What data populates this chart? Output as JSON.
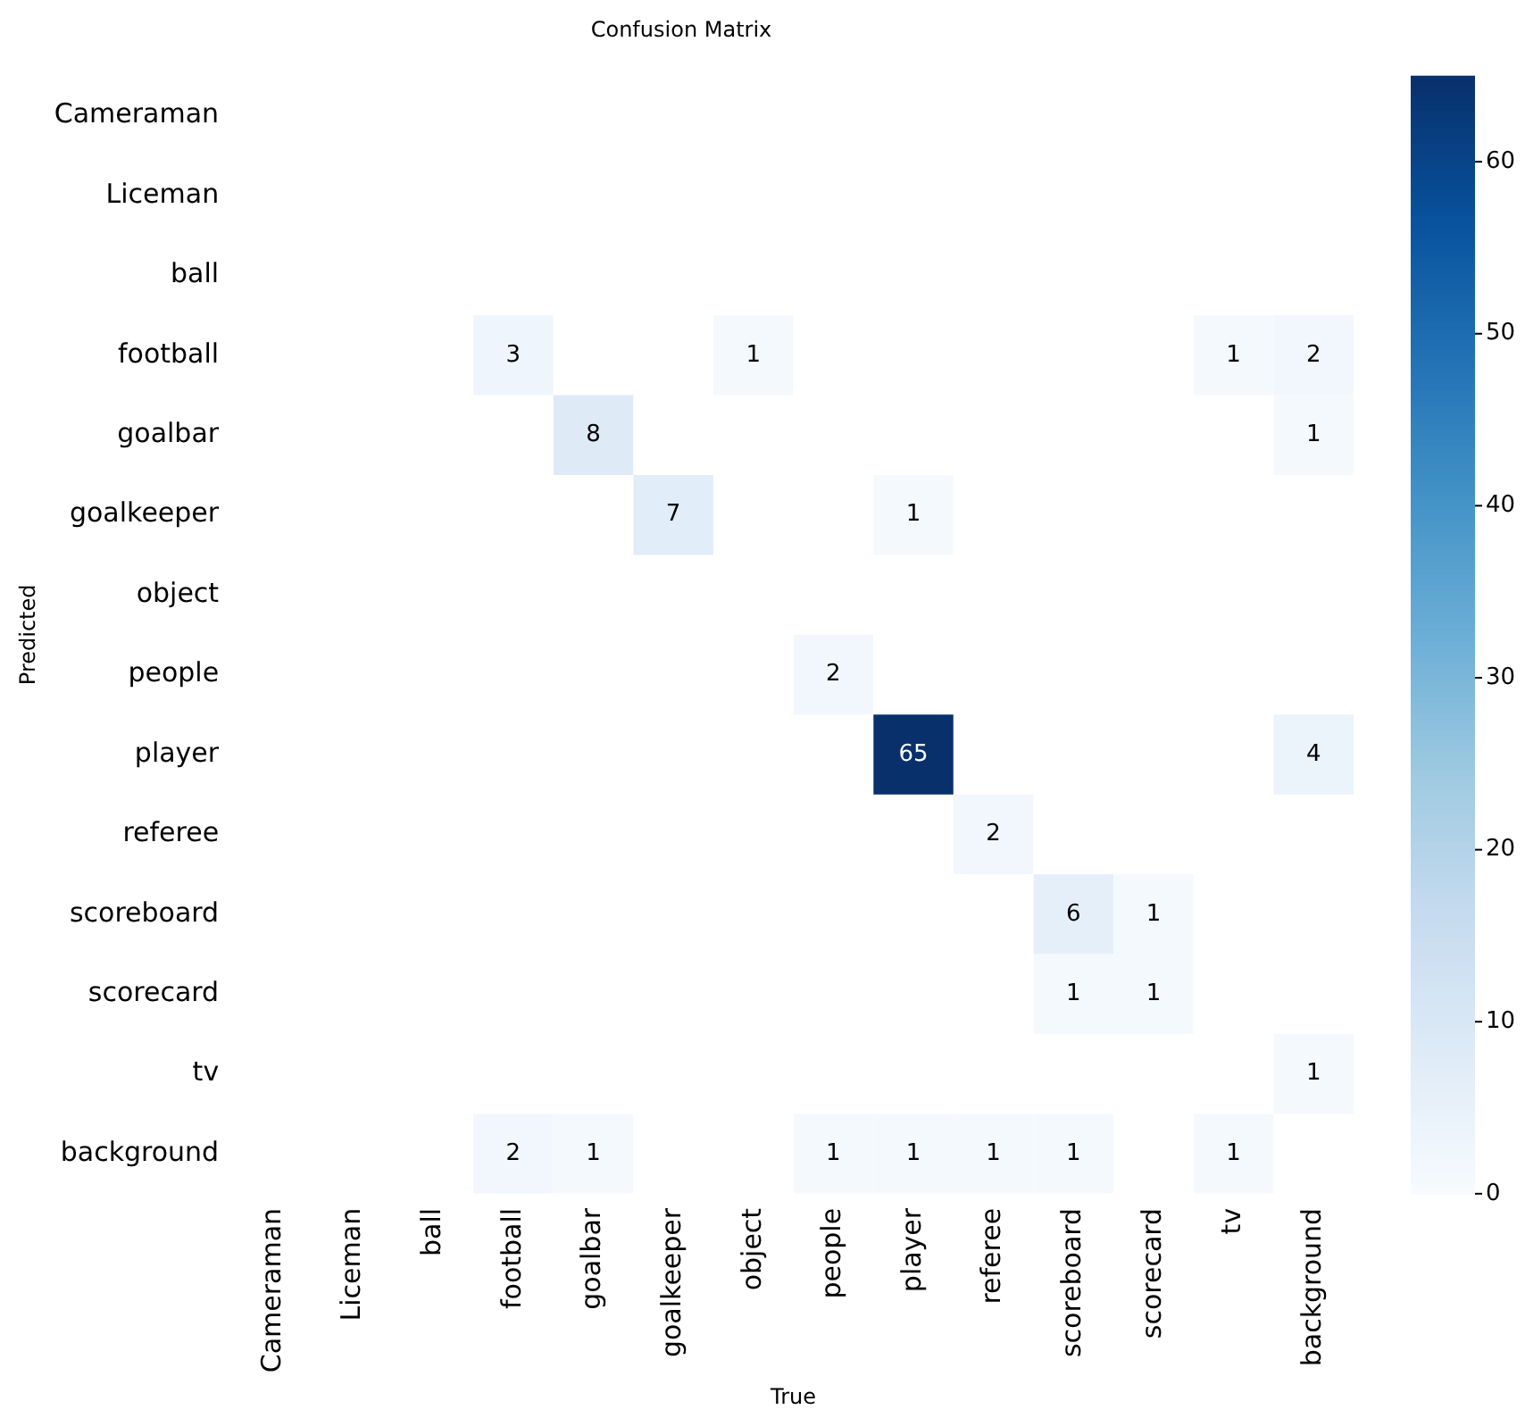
{
  "chart_data": {
    "type": "heatmap",
    "title": "Confusion Matrix",
    "xlabel": "True",
    "ylabel": "Predicted",
    "categories": [
      "Cameraman",
      "Liceman",
      "ball",
      "football",
      "goalbar",
      "goalkeeper",
      "object",
      "people",
      "player",
      "referee",
      "scoreboard",
      "scorecard",
      "tv",
      "background"
    ],
    "y_categories": [
      "Cameraman",
      "Liceman",
      "ball",
      "football",
      "goalbar",
      "goalkeeper",
      "object",
      "people",
      "player",
      "referee",
      "scoreboard",
      "scorecard",
      "tv",
      "background"
    ],
    "cells": [
      [
        null,
        null,
        null,
        null,
        null,
        null,
        null,
        null,
        null,
        null,
        null,
        null,
        null,
        null
      ],
      [
        null,
        null,
        null,
        null,
        null,
        null,
        null,
        null,
        null,
        null,
        null,
        null,
        null,
        null
      ],
      [
        null,
        null,
        null,
        null,
        null,
        null,
        null,
        null,
        null,
        null,
        null,
        null,
        null,
        null
      ],
      [
        null,
        null,
        null,
        3,
        null,
        null,
        1,
        null,
        null,
        null,
        null,
        null,
        1,
        2
      ],
      [
        null,
        null,
        null,
        null,
        8,
        null,
        null,
        null,
        null,
        null,
        null,
        null,
        null,
        1
      ],
      [
        null,
        null,
        null,
        null,
        null,
        7,
        null,
        null,
        1,
        null,
        null,
        null,
        null,
        null
      ],
      [
        null,
        null,
        null,
        null,
        null,
        null,
        null,
        null,
        null,
        null,
        null,
        null,
        null,
        null
      ],
      [
        null,
        null,
        null,
        null,
        null,
        null,
        null,
        2,
        null,
        null,
        null,
        null,
        null,
        null
      ],
      [
        null,
        null,
        null,
        null,
        null,
        null,
        null,
        null,
        65,
        null,
        null,
        null,
        null,
        4
      ],
      [
        null,
        null,
        null,
        null,
        null,
        null,
        null,
        null,
        null,
        2,
        null,
        null,
        null,
        null
      ],
      [
        null,
        null,
        null,
        null,
        null,
        null,
        null,
        null,
        null,
        null,
        6,
        1,
        null,
        null
      ],
      [
        null,
        null,
        null,
        null,
        null,
        null,
        null,
        null,
        null,
        null,
        1,
        1,
        null,
        null
      ],
      [
        null,
        null,
        null,
        null,
        null,
        null,
        null,
        null,
        null,
        null,
        null,
        null,
        null,
        1
      ],
      [
        null,
        null,
        null,
        2,
        1,
        null,
        null,
        1,
        1,
        1,
        1,
        null,
        1,
        null
      ]
    ],
    "data_labels": true,
    "clim": [
      0,
      65
    ],
    "cticks": [
      0,
      10,
      20,
      30,
      40,
      50,
      60
    ]
  }
}
